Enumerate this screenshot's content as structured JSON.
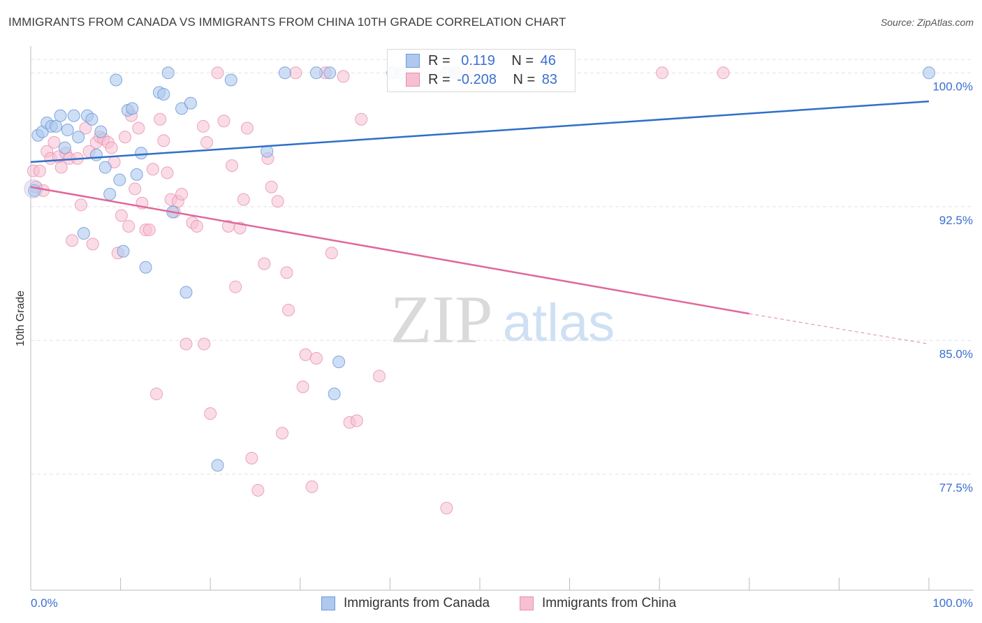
{
  "title": "IMMIGRANTS FROM CANADA VS IMMIGRANTS FROM CHINA 10TH GRADE CORRELATION CHART",
  "source": "Source: ZipAtlas.com",
  "watermark": {
    "zip": "ZIP",
    "atlas": "atlas"
  },
  "legend": {
    "canada": {
      "r_label": "R =",
      "r_value": "0.119",
      "n_label": "N =",
      "n_value": "46"
    },
    "china": {
      "r_label": "R =",
      "r_value": "-0.208",
      "n_label": "N =",
      "n_value": "83"
    }
  },
  "colors": {
    "canada_fill": "#aec8ef",
    "canada_stroke": "#6f9ad8",
    "canada_line": "#2f6fc9",
    "china_fill": "#f6bfd2",
    "china_stroke": "#e88fae",
    "china_line": "#e0689a",
    "tick_text": "#3a6fcf",
    "grid": "#e3e3e3"
  },
  "chart_data": {
    "type": "scatter",
    "title": "IMMIGRANTS FROM CANADA VS IMMIGRANTS FROM CHINA 10TH GRADE CORRELATION CHART",
    "xlabel": "",
    "ylabel": "10th Grade",
    "xlim": [
      0,
      100
    ],
    "ylim": [
      71.0,
      101.5
    ],
    "x_tick_labels": [
      "0.0%",
      "100.0%"
    ],
    "y_ticks": [
      77.5,
      85.0,
      92.5,
      100.0
    ],
    "y_tick_labels": [
      "77.5%",
      "85.0%",
      "92.5%",
      "100.0%"
    ],
    "grid": true,
    "legend_position": "top-center",
    "series": [
      {
        "name": "Immigrants from Canada",
        "r": 0.119,
        "n": 46,
        "trend": {
          "x": [
            0,
            100
          ],
          "y": [
            95.0,
            98.4
          ]
        },
        "points": [
          [
            0.4,
            93.4
          ],
          [
            0.8,
            96.5
          ],
          [
            1.3,
            96.7
          ],
          [
            1.8,
            97.2
          ],
          [
            2.3,
            97.0
          ],
          [
            2.8,
            97.0
          ],
          [
            3.3,
            97.6
          ],
          [
            3.8,
            95.8
          ],
          [
            4.1,
            96.8
          ],
          [
            4.8,
            97.6
          ],
          [
            5.3,
            96.4
          ],
          [
            6.3,
            97.6
          ],
          [
            6.8,
            97.4
          ],
          [
            7.3,
            95.4
          ],
          [
            7.8,
            96.7
          ],
          [
            8.3,
            94.7
          ],
          [
            8.8,
            93.2
          ],
          [
            9.5,
            99.6
          ],
          [
            9.9,
            94.0
          ],
          [
            10.3,
            90.0
          ],
          [
            10.8,
            97.9
          ],
          [
            11.3,
            98.0
          ],
          [
            11.8,
            94.3
          ],
          [
            12.3,
            95.5
          ],
          [
            12.8,
            89.1
          ],
          [
            14.3,
            98.9
          ],
          [
            14.8,
            98.8
          ],
          [
            15.3,
            100.0
          ],
          [
            15.8,
            92.2
          ],
          [
            16.8,
            98.0
          ],
          [
            17.3,
            87.7
          ],
          [
            17.8,
            98.3
          ],
          [
            20.8,
            78.0
          ],
          [
            22.3,
            99.6
          ],
          [
            26.3,
            95.6
          ],
          [
            28.3,
            100.0
          ],
          [
            31.8,
            100.0
          ],
          [
            33.3,
            100.0
          ],
          [
            33.8,
            82.0
          ],
          [
            34.3,
            83.8
          ],
          [
            40.3,
            100.0
          ],
          [
            41.3,
            100.0
          ],
          [
            46.3,
            100.0
          ],
          [
            47.3,
            100.0
          ],
          [
            100.0,
            100.0
          ],
          [
            5.9,
            91.0
          ]
        ]
      },
      {
        "name": "Immigrants from China",
        "r": -0.208,
        "n": 83,
        "trend": {
          "x": [
            0,
            80
          ],
          "y": [
            93.6,
            86.5
          ]
        },
        "trend_dashed": {
          "x": [
            80,
            100
          ],
          "y": [
            86.5,
            84.8
          ]
        },
        "points": [
          [
            0.3,
            94.5
          ],
          [
            0.6,
            93.6
          ],
          [
            1.0,
            94.5
          ],
          [
            1.4,
            93.4
          ],
          [
            1.8,
            95.6
          ],
          [
            2.2,
            95.2
          ],
          [
            2.6,
            96.1
          ],
          [
            3.1,
            95.3
          ],
          [
            3.4,
            94.7
          ],
          [
            3.9,
            95.5
          ],
          [
            4.3,
            95.2
          ],
          [
            4.6,
            90.6
          ],
          [
            5.2,
            95.2
          ],
          [
            5.6,
            92.6
          ],
          [
            6.1,
            96.9
          ],
          [
            6.5,
            95.6
          ],
          [
            6.9,
            90.4
          ],
          [
            7.3,
            96.1
          ],
          [
            7.7,
            96.4
          ],
          [
            8.1,
            96.3
          ],
          [
            8.6,
            96.1
          ],
          [
            9.0,
            95.8
          ],
          [
            9.3,
            95.0
          ],
          [
            9.7,
            89.9
          ],
          [
            10.1,
            92.0
          ],
          [
            10.5,
            96.4
          ],
          [
            10.9,
            91.4
          ],
          [
            11.2,
            97.6
          ],
          [
            11.6,
            93.5
          ],
          [
            12.0,
            96.9
          ],
          [
            12.4,
            92.7
          ],
          [
            12.8,
            91.2
          ],
          [
            13.2,
            91.2
          ],
          [
            13.6,
            94.6
          ],
          [
            14.0,
            82.0
          ],
          [
            14.4,
            97.4
          ],
          [
            14.8,
            96.2
          ],
          [
            15.2,
            94.4
          ],
          [
            15.6,
            92.9
          ],
          [
            16.0,
            92.2
          ],
          [
            16.4,
            92.8
          ],
          [
            16.8,
            93.2
          ],
          [
            17.3,
            84.8
          ],
          [
            18.0,
            91.6
          ],
          [
            18.5,
            91.4
          ],
          [
            19.2,
            97.0
          ],
          [
            19.3,
            84.8
          ],
          [
            19.6,
            96.1
          ],
          [
            20.0,
            80.9
          ],
          [
            20.8,
            100.0
          ],
          [
            21.5,
            97.3
          ],
          [
            22.0,
            91.4
          ],
          [
            22.4,
            94.8
          ],
          [
            22.8,
            88.0
          ],
          [
            23.3,
            91.3
          ],
          [
            23.7,
            92.9
          ],
          [
            24.1,
            96.9
          ],
          [
            24.6,
            78.4
          ],
          [
            25.3,
            76.6
          ],
          [
            26.0,
            89.3
          ],
          [
            26.4,
            95.2
          ],
          [
            26.8,
            93.6
          ],
          [
            27.5,
            92.8
          ],
          [
            28.0,
            79.8
          ],
          [
            28.5,
            88.8
          ],
          [
            28.7,
            86.7
          ],
          [
            29.5,
            100.0
          ],
          [
            30.3,
            82.4
          ],
          [
            30.6,
            84.2
          ],
          [
            31.3,
            76.8
          ],
          [
            31.8,
            84.0
          ],
          [
            32.8,
            100.0
          ],
          [
            33.5,
            89.9
          ],
          [
            34.8,
            99.8
          ],
          [
            35.5,
            80.4
          ],
          [
            36.3,
            80.5
          ],
          [
            36.8,
            97.4
          ],
          [
            38.8,
            83.0
          ],
          [
            47.3,
            100.0
          ],
          [
            49.2,
            100.0
          ],
          [
            46.3,
            75.6
          ],
          [
            70.3,
            100.0
          ],
          [
            77.1,
            100.0
          ]
        ]
      }
    ]
  }
}
